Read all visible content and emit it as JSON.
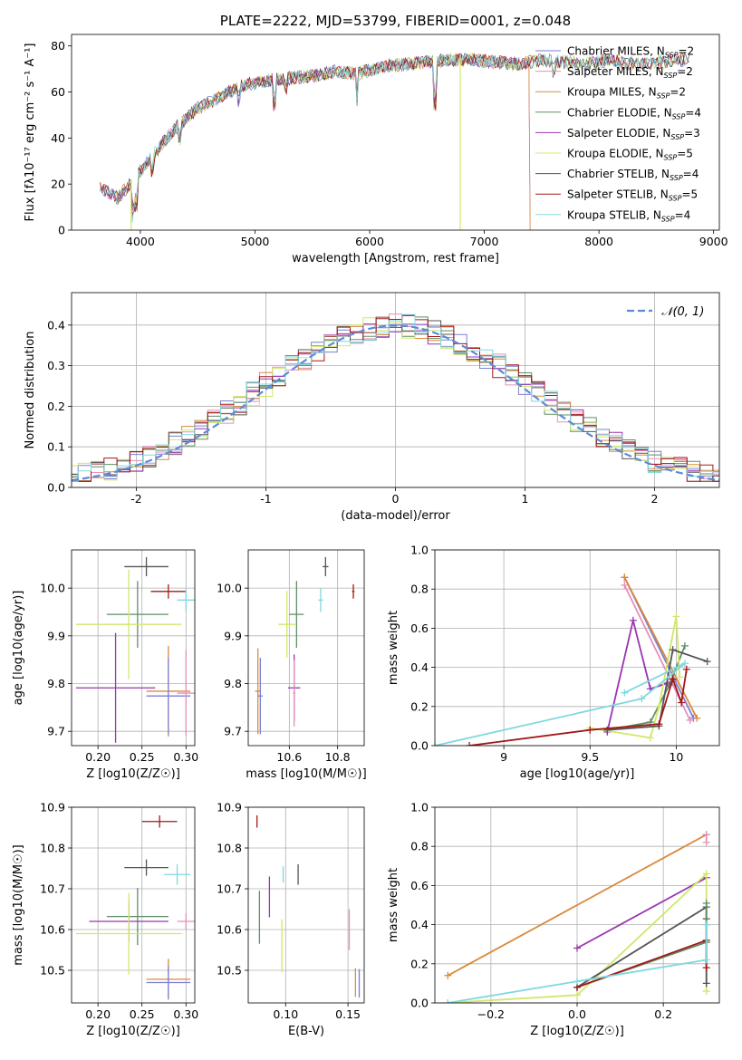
{
  "colors": {
    "Chabrier MILES": "#7a7fd8",
    "Salpeter MILES": "#e58fbd",
    "Kroupa MILES": "#d98a3c",
    "Chabrier ELODIE": "#5f8f63",
    "Salpeter ELODIE": "#9a35b0",
    "Kroupa ELODIE": "#cfe86a",
    "Chabrier STELIB": "#555555",
    "Salpeter STELIB": "#a31818",
    "Kroupa STELIB": "#7fd8df",
    "gauss": "#5b8bd8"
  },
  "chart_data": [
    {
      "panel": "spectrum",
      "type": "line",
      "title": "PLATE=2222, MJD=53799, FIBERID=0001, z=0.048",
      "xlabel": "wavelength [Angstrom, rest frame]",
      "ylabel": "Flux [fλ10⁻¹⁷ erg cm⁻² s⁻¹ A⁻¹]",
      "xlim": [
        3400,
        9050
      ],
      "ylim": [
        0,
        85
      ],
      "xticks": [
        4000,
        5000,
        6000,
        7000,
        8000,
        9000
      ],
      "yticks": [
        0,
        20,
        40,
        60,
        80
      ],
      "legend_position": "top-right",
      "legend": [
        "Chabrier MILES, NSSP=2",
        "Salpeter MILES, NSSP=2",
        "Kroupa MILES, NSSP=2",
        "Chabrier ELODIE, NSSP=4",
        "Salpeter ELODIE, NSSP=3",
        "Kroupa ELODIE, NSSP=5",
        "Chabrier STELIB, NSSP=4",
        "Salpeter STELIB, NSSP=5",
        "Kroupa STELIB, NSSP=4"
      ],
      "continuum": [
        [
          3650,
          18
        ],
        [
          3800,
          14
        ],
        [
          3950,
          22
        ],
        [
          4100,
          32
        ],
        [
          4300,
          44
        ],
        [
          4500,
          53
        ],
        [
          4700,
          58
        ],
        [
          4900,
          63
        ],
        [
          5100,
          65
        ],
        [
          5300,
          66
        ],
        [
          5500,
          67
        ],
        [
          5700,
          69
        ],
        [
          5900,
          68
        ],
        [
          6100,
          71
        ],
        [
          6300,
          72
        ],
        [
          6500,
          73
        ],
        [
          6700,
          74
        ],
        [
          6900,
          74
        ],
        [
          7100,
          73
        ],
        [
          7300,
          72
        ],
        [
          7500,
          74
        ],
        [
          7700,
          73
        ],
        [
          7900,
          72
        ],
        [
          8100,
          74
        ],
        [
          8300,
          72
        ],
        [
          8500,
          73
        ],
        [
          8750,
          74
        ]
      ],
      "dropouts": {
        "Kroupa ELODIE": 3900,
        "Kroupa MILES": 7400,
        "Salpeter MILES": 7400,
        "Chabrier MILES": 7400,
        "Salpeter ELODIE": 6790
      }
    },
    {
      "panel": "residuals",
      "type": "histogram",
      "xlabel": "(data-model)/error",
      "ylabel": "Normed distribution",
      "xlim": [
        -2.5,
        2.5
      ],
      "ylim": [
        0,
        0.48
      ],
      "xticks": [
        -2,
        -1,
        0,
        1,
        2
      ],
      "yticks": [
        0.0,
        0.1,
        0.2,
        0.3,
        0.4
      ],
      "legend": [
        "𝒩(0, 1)"
      ],
      "legend_position": "top-right",
      "bin_width": 0.1
    },
    {
      "panel": "age_vs_Z",
      "type": "errorbar",
      "xlabel": "Z [log10(Z/Z☉)]",
      "ylabel": "age  [log10(age/yr)]",
      "xlim": [
        0.17,
        0.31
      ],
      "ylim": [
        9.67,
        10.08
      ],
      "xticks": [
        0.2,
        0.25,
        0.3
      ],
      "xticklabels": [
        "0.20",
        "0.25",
        "0.30"
      ],
      "yticks": [
        9.7,
        9.8,
        9.9,
        10.0
      ],
      "points": [
        {
          "series": "Chabrier STELIB",
          "x": 0.255,
          "y": 10.045,
          "xerr": 0.025,
          "yerr": 0.02
        },
        {
          "series": "Salpeter STELIB",
          "x": 0.28,
          "y": 9.993,
          "xerr": 0.02,
          "yerr": 0.015
        },
        {
          "series": "Kroupa STELIB",
          "x": 0.3,
          "y": 9.975,
          "xerr": 0.01,
          "yerr": 0.025
        },
        {
          "series": "Chabrier ELODIE",
          "x": 0.245,
          "y": 9.945,
          "xerr": 0.035,
          "yerr": 0.07
        },
        {
          "series": "Kroupa ELODIE",
          "x": 0.235,
          "y": 9.924,
          "xerr": 0.06,
          "yerr": 0.115
        },
        {
          "series": "Salpeter ELODIE",
          "x": 0.22,
          "y": 9.791,
          "xerr": 0.045,
          "yerr": 0.115
        },
        {
          "series": "Kroupa MILES",
          "x": 0.28,
          "y": 9.784,
          "xerr": 0.025,
          "yerr": 0.095
        },
        {
          "series": "Chabrier MILES",
          "x": 0.28,
          "y": 9.774,
          "xerr": 0.025,
          "yerr": 0.08
        },
        {
          "series": "Salpeter MILES",
          "x": 0.3,
          "y": 9.78,
          "xerr": 0.01,
          "yerr": 0.09
        }
      ]
    },
    {
      "panel": "age_vs_mass",
      "type": "errorbar",
      "xlabel": "mass [log10(M/M☉)]",
      "ylabel": "",
      "xlim": [
        10.43,
        10.91
      ],
      "ylim": [
        9.67,
        10.08
      ],
      "xticks": [
        10.6,
        10.8
      ],
      "yticks": [
        9.7,
        9.8,
        9.9,
        10.0
      ],
      "points": [
        {
          "series": "Chabrier STELIB",
          "x": 10.75,
          "y": 10.045,
          "xerr": 0.012,
          "yerr": 0.02
        },
        {
          "series": "Salpeter STELIB",
          "x": 10.865,
          "y": 9.993,
          "xerr": 0.005,
          "yerr": 0.015
        },
        {
          "series": "Kroupa STELIB",
          "x": 10.73,
          "y": 9.975,
          "xerr": 0.01,
          "yerr": 0.025
        },
        {
          "series": "Chabrier ELODIE",
          "x": 10.63,
          "y": 9.945,
          "xerr": 0.03,
          "yerr": 0.07
        },
        {
          "series": "Kroupa ELODIE",
          "x": 10.59,
          "y": 9.924,
          "xerr": 0.035,
          "yerr": 0.07
        },
        {
          "series": "Salpeter ELODIE",
          "x": 10.62,
          "y": 9.791,
          "xerr": 0.025,
          "yerr": 0.07
        },
        {
          "series": "Kroupa MILES",
          "x": 10.47,
          "y": 9.784,
          "xerr": 0.012,
          "yerr": 0.09
        },
        {
          "series": "Chabrier MILES",
          "x": 10.48,
          "y": 9.774,
          "xerr": 0.01,
          "yerr": 0.08
        },
        {
          "series": "Salpeter MILES",
          "x": 10.62,
          "y": 9.78,
          "xerr": 0.005,
          "yerr": 0.07
        }
      ]
    },
    {
      "panel": "weight_vs_age",
      "type": "line",
      "xlabel": "age  [log10(age/yr)]",
      "ylabel": "mass weight",
      "xlim": [
        8.6,
        10.25
      ],
      "ylim": [
        0,
        1.0
      ],
      "xticks": [
        9.0,
        9.5,
        10.0
      ],
      "yticks": [
        0.0,
        0.2,
        0.4,
        0.6,
        0.8,
        1.0
      ],
      "series": [
        {
          "name": "Chabrier MILES",
          "points": [
            [
              9.7,
              0.86
            ],
            [
              10.1,
              0.14
            ]
          ]
        },
        {
          "name": "Salpeter MILES",
          "points": [
            [
              9.7,
              0.82
            ],
            [
              10.08,
              0.13
            ]
          ]
        },
        {
          "name": "Kroupa MILES",
          "points": [
            [
              9.7,
              0.86
            ],
            [
              10.12,
              0.14
            ]
          ]
        },
        {
          "name": "Chabrier ELODIE",
          "points": [
            [
              9.6,
              0.08
            ],
            [
              9.85,
              0.12
            ],
            [
              9.96,
              0.31
            ],
            [
              10.05,
              0.51
            ]
          ]
        },
        {
          "name": "Salpeter ELODIE",
          "points": [
            [
              9.6,
              0.07
            ],
            [
              9.75,
              0.64
            ],
            [
              9.85,
              0.29
            ],
            [
              9.95,
              0.32
            ]
          ]
        },
        {
          "name": "Kroupa ELODIE",
          "points": [
            [
              9.5,
              0.09
            ],
            [
              9.85,
              0.04
            ],
            [
              9.9,
              0.2
            ],
            [
              10.0,
              0.66
            ],
            [
              10.02,
              0.35
            ]
          ]
        },
        {
          "name": "Chabrier STELIB",
          "points": [
            [
              9.6,
              0.08
            ],
            [
              9.9,
              0.1
            ],
            [
              9.98,
              0.49
            ],
            [
              10.18,
              0.43
            ]
          ]
        },
        {
          "name": "Salpeter STELIB",
          "points": [
            [
              8.8,
              0.0
            ],
            [
              9.5,
              0.08
            ],
            [
              9.9,
              0.11
            ],
            [
              9.98,
              0.34
            ],
            [
              10.03,
              0.22
            ],
            [
              10.06,
              0.39
            ]
          ]
        },
        {
          "name": "Kroupa STELIB",
          "points": [
            [
              8.6,
              0.0
            ],
            [
              9.8,
              0.24
            ],
            [
              10.05,
              0.42
            ],
            [
              9.7,
              0.27
            ]
          ]
        }
      ]
    },
    {
      "panel": "mass_vs_Z",
      "type": "errorbar",
      "xlabel": "Z [log10(Z/Z☉)]",
      "ylabel": "mass [log10(M/M☉)]",
      "xlim": [
        0.17,
        0.31
      ],
      "ylim": [
        10.42,
        10.9
      ],
      "xticks": [
        0.2,
        0.25,
        0.3
      ],
      "xticklabels": [
        "0.20",
        "0.25",
        "0.30"
      ],
      "yticks": [
        10.5,
        10.6,
        10.7,
        10.8,
        10.9
      ],
      "points": [
        {
          "series": "Salpeter STELIB",
          "x": 0.27,
          "y": 10.865,
          "xerr": 0.02,
          "yerr": 0.015
        },
        {
          "series": "Chabrier STELIB",
          "x": 0.255,
          "y": 10.752,
          "xerr": 0.025,
          "yerr": 0.02
        },
        {
          "series": "Kroupa STELIB",
          "x": 0.29,
          "y": 10.735,
          "xerr": 0.015,
          "yerr": 0.025
        },
        {
          "series": "Chabrier ELODIE",
          "x": 0.245,
          "y": 10.632,
          "xerr": 0.035,
          "yerr": 0.07
        },
        {
          "series": "Salpeter ELODIE",
          "x": 0.235,
          "y": 10.62,
          "xerr": 0.045,
          "yerr": 0.05
        },
        {
          "series": "Kroupa ELODIE",
          "x": 0.235,
          "y": 10.59,
          "xerr": 0.06,
          "yerr": 0.1
        },
        {
          "series": "Salpeter MILES",
          "x": 0.3,
          "y": 10.62,
          "xerr": 0.01,
          "yerr": 0.02
        },
        {
          "series": "Kroupa MILES",
          "x": 0.28,
          "y": 10.478,
          "xerr": 0.025,
          "yerr": 0.05
        },
        {
          "series": "Chabrier MILES",
          "x": 0.28,
          "y": 10.47,
          "xerr": 0.025,
          "yerr": 0.04
        }
      ]
    },
    {
      "panel": "mass_vs_EBV",
      "type": "errorbar",
      "xlabel": "E(B-V)",
      "ylabel": "",
      "xlim": [
        0.07,
        0.163
      ],
      "ylim": [
        10.42,
        10.9
      ],
      "xticks": [
        0.1,
        0.15
      ],
      "xticklabels": [
        "0.10",
        "0.15"
      ],
      "yticks": [
        10.5,
        10.6,
        10.7,
        10.8,
        10.9
      ],
      "points": [
        {
          "series": "Salpeter STELIB",
          "x": 0.077,
          "y": 10.865,
          "yerr": 0.015
        },
        {
          "series": "Chabrier STELIB",
          "x": 0.11,
          "y": 10.735,
          "yerr": 0.025
        },
        {
          "series": "Kroupa STELIB",
          "x": 0.098,
          "y": 10.735,
          "yerr": 0.02
        },
        {
          "series": "Salpeter ELODIE",
          "x": 0.087,
          "y": 10.68,
          "yerr": 0.05
        },
        {
          "series": "Chabrier ELODIE",
          "x": 0.079,
          "y": 10.63,
          "yerr": 0.065
        },
        {
          "series": "Kroupa ELODIE",
          "x": 0.097,
          "y": 10.56,
          "yerr": 0.065
        },
        {
          "series": "Salpeter MILES",
          "x": 0.151,
          "y": 10.6,
          "yerr": 0.05
        },
        {
          "series": "Kroupa MILES",
          "x": 0.156,
          "y": 10.47,
          "yerr": 0.035
        },
        {
          "series": "Chabrier MILES",
          "x": 0.159,
          "y": 10.468,
          "yerr": 0.035
        }
      ]
    },
    {
      "panel": "weight_vs_Z",
      "type": "line",
      "xlabel": "Z [log10(Z/Z☉)]",
      "ylabel": "mass weight",
      "xlim": [
        -0.33,
        0.33
      ],
      "ylim": [
        0,
        1.0
      ],
      "xticks": [
        -0.2,
        0.0,
        0.2
      ],
      "xticklabels": [
        "−0.2",
        "0.0",
        "0.2"
      ],
      "yticks": [
        0.0,
        0.2,
        0.4,
        0.6,
        0.8,
        1.0
      ],
      "series": [
        {
          "name": "Kroupa MILES",
          "points": [
            [
              -0.3,
              0.14
            ],
            [
              0.3,
              0.86
            ]
          ]
        },
        {
          "name": "Salpeter MILES",
          "points": [
            [
              0.3,
              0.86
            ],
            [
              0.3,
              0.82
            ]
          ]
        },
        {
          "name": "Salpeter ELODIE",
          "points": [
            [
              0.0,
              0.28
            ],
            [
              0.3,
              0.64
            ]
          ]
        },
        {
          "name": "Kroupa ELODIE",
          "points": [
            [
              -0.3,
              0.0
            ],
            [
              0.0,
              0.04
            ],
            [
              0.3,
              0.66
            ],
            [
              0.3,
              0.06
            ]
          ]
        },
        {
          "name": "Chabrier STELIB",
          "points": [
            [
              0.0,
              0.08
            ],
            [
              0.3,
              0.49
            ],
            [
              0.3,
              0.43
            ],
            [
              0.3,
              0.1
            ]
          ]
        },
        {
          "name": "Chabrier ELODIE",
          "points": [
            [
              0.0,
              0.08
            ],
            [
              0.3,
              0.31
            ],
            [
              0.3,
              0.51
            ]
          ]
        },
        {
          "name": "Salpeter STELIB",
          "points": [
            [
              0.0,
              0.08
            ],
            [
              0.3,
              0.32
            ],
            [
              0.3,
              0.18
            ]
          ]
        },
        {
          "name": "Kroupa STELIB",
          "points": [
            [
              -0.3,
              0.0
            ],
            [
              0.0,
              0.11
            ],
            [
              0.3,
              0.22
            ],
            [
              0.3,
              0.4
            ]
          ]
        }
      ]
    }
  ]
}
